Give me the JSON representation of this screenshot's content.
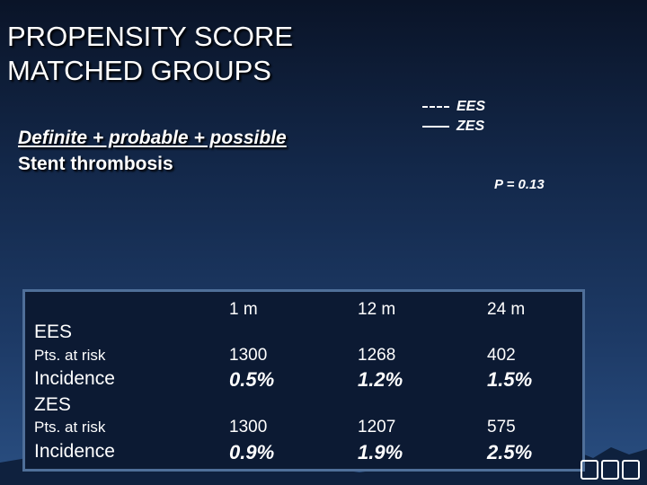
{
  "slide": {
    "title_line1": "PROPENSITY SCORE",
    "title_line2": "MATCHED GROUPS",
    "subtitle_line1": "Definite + probable + possible",
    "subtitle_line2": "Stent thrombosis",
    "p_value": "P = 0.13"
  },
  "legend": {
    "dashed_symbol": "- - -",
    "dashed_label": "EES",
    "solid_symbol": "——",
    "solid_label": "ZES"
  },
  "chart_data": {
    "type": "table",
    "columns": [
      "1 m",
      "12 m",
      "24 m"
    ],
    "groups": [
      {
        "name": "EES",
        "pts_label": "Pts. at risk",
        "pts_at_risk": [
          "1300",
          "1268",
          "402"
        ],
        "incidence_label": "Incidence",
        "incidence": [
          "0.5%",
          "1.2%",
          "1.5%"
        ]
      },
      {
        "name": "ZES",
        "pts_label": "Pts. at risk",
        "pts_at_risk": [
          "1300",
          "1207",
          "575"
        ],
        "incidence_label": "Incidence",
        "incidence": [
          "0.9%",
          "1.9%",
          "2.5%"
        ]
      }
    ]
  }
}
